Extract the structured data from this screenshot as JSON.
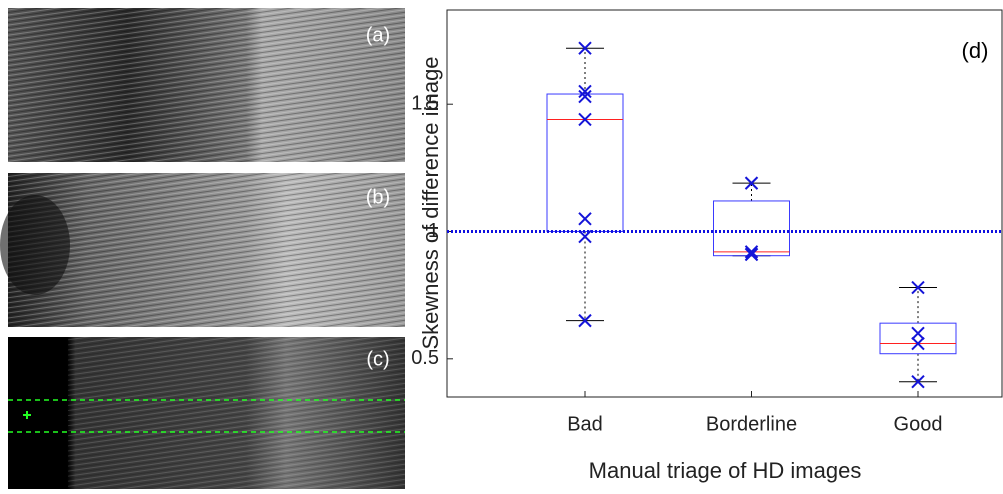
{
  "panel_labels": [
    "(a)",
    "(b)",
    "(c)"
  ],
  "chart_data": {
    "type": "box",
    "panel_label": "(d)",
    "y_label": "Skewness of difference image",
    "x_label": "Manual triage of HD images",
    "categories": [
      "Bad",
      "Borderline",
      "Good"
    ],
    "boxes": [
      {
        "low": 0.65,
        "q1": 1.0,
        "median": 1.44,
        "q3": 1.54,
        "high": 1.72,
        "points": [
          1.72,
          1.55,
          1.53,
          1.44,
          1.05,
          0.98,
          0.65
        ]
      },
      {
        "low": 0.905,
        "q1": 0.905,
        "median": 0.92,
        "q3": 1.12,
        "high": 1.19,
        "points": [
          1.19,
          0.92,
          0.91,
          0.91
        ]
      },
      {
        "low": 0.41,
        "q1": 0.52,
        "median": 0.56,
        "q3": 0.64,
        "high": 0.78,
        "points": [
          0.78,
          0.6,
          0.56,
          0.41
        ]
      }
    ],
    "reference_line": 1,
    "box_color": "#3a3aff",
    "median_color": "#ff2020",
    "point_color": "#1414d8",
    "reference_color": "#1010e0",
    "ylim": [
      0.35,
      1.87
    ],
    "yticks": [
      0.5,
      1,
      1.5
    ]
  }
}
